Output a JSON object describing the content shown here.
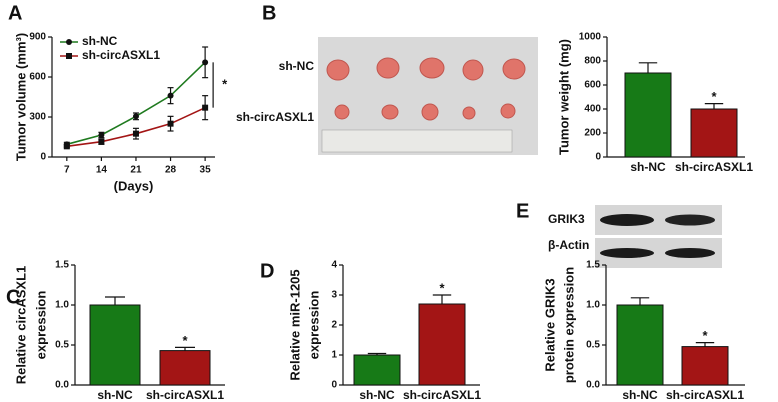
{
  "chart_data": [
    {
      "type": "line",
      "panel": "A",
      "y_label": "Tumor volume (mm³)",
      "x_label": "(Days)",
      "x": [
        7,
        14,
        21,
        28,
        35
      ],
      "xlim": [
        4,
        37
      ],
      "xticks": [
        7,
        14,
        21,
        28,
        35
      ],
      "ylim": [
        0,
        900
      ],
      "yticks": [
        0,
        300,
        600,
        900
      ],
      "significance": "*",
      "series": [
        {
          "name": "sh-NC",
          "color": "#1f7a1f",
          "marker": "circle",
          "values": [
            95,
            165,
            305,
            460,
            710
          ],
          "errors": [
            15,
            20,
            25,
            60,
            115
          ]
        },
        {
          "name": "sh-circASXL1",
          "color": "#a31515",
          "marker": "square",
          "values": [
            80,
            115,
            175,
            250,
            370
          ],
          "errors": [
            10,
            20,
            40,
            55,
            90
          ]
        }
      ]
    },
    {
      "type": "bar",
      "panel": "B",
      "y_label": [
        "Tumor weight (mg)"
      ],
      "image_labels": [
        "sh-NC",
        "sh-circASXL1"
      ],
      "categories": [
        "sh-NC",
        "sh-circASXL1"
      ],
      "values": [
        700,
        400
      ],
      "errors": [
        85,
        45
      ],
      "colors": [
        "#177a17",
        "#a31515"
      ],
      "ylim": [
        0,
        1000
      ],
      "yticks": [
        0,
        200,
        400,
        600,
        800,
        1000
      ],
      "significance": "*"
    },
    {
      "type": "bar",
      "panel": "C",
      "y_label": [
        "Relative circASXL1",
        "expression"
      ],
      "categories": [
        "sh-NC",
        "sh-circASXL1"
      ],
      "values": [
        1.0,
        0.43
      ],
      "errors": [
        0.1,
        0.04
      ],
      "colors": [
        "#177a17",
        "#a31515"
      ],
      "ylim": [
        0,
        1.5
      ],
      "yticks": [
        {
          "value": 0,
          "label": "0.0"
        },
        0.5,
        {
          "value": 1,
          "label": "1.0"
        },
        1.5
      ],
      "significance": "*"
    },
    {
      "type": "bar",
      "panel": "D",
      "y_label": [
        "Relative miR-1205",
        "expression"
      ],
      "categories": [
        "sh-NC",
        "sh-circASXL1"
      ],
      "values": [
        1.0,
        2.7
      ],
      "errors": [
        0.05,
        0.3
      ],
      "colors": [
        "#177a17",
        "#a31515"
      ],
      "ylim": [
        0,
        4
      ],
      "yticks": [
        0,
        1,
        2,
        3,
        4
      ],
      "significance": "*"
    },
    {
      "type": "bar",
      "panel": "E",
      "y_label": [
        "Relative GRIK3",
        "protein expression"
      ],
      "blot_labels": [
        "GRIK3",
        "β-Actin"
      ],
      "categories": [
        "sh-NC",
        "sh-circASXL1"
      ],
      "values": [
        1.0,
        0.48
      ],
      "errors": [
        0.09,
        0.05
      ],
      "colors": [
        "#177a17",
        "#a31515"
      ],
      "ylim": [
        0,
        1.5
      ],
      "yticks": [
        {
          "value": 0,
          "label": "0.0"
        },
        0.5,
        {
          "value": 1,
          "label": "1.0"
        },
        1.5
      ],
      "significance": "*"
    }
  ]
}
